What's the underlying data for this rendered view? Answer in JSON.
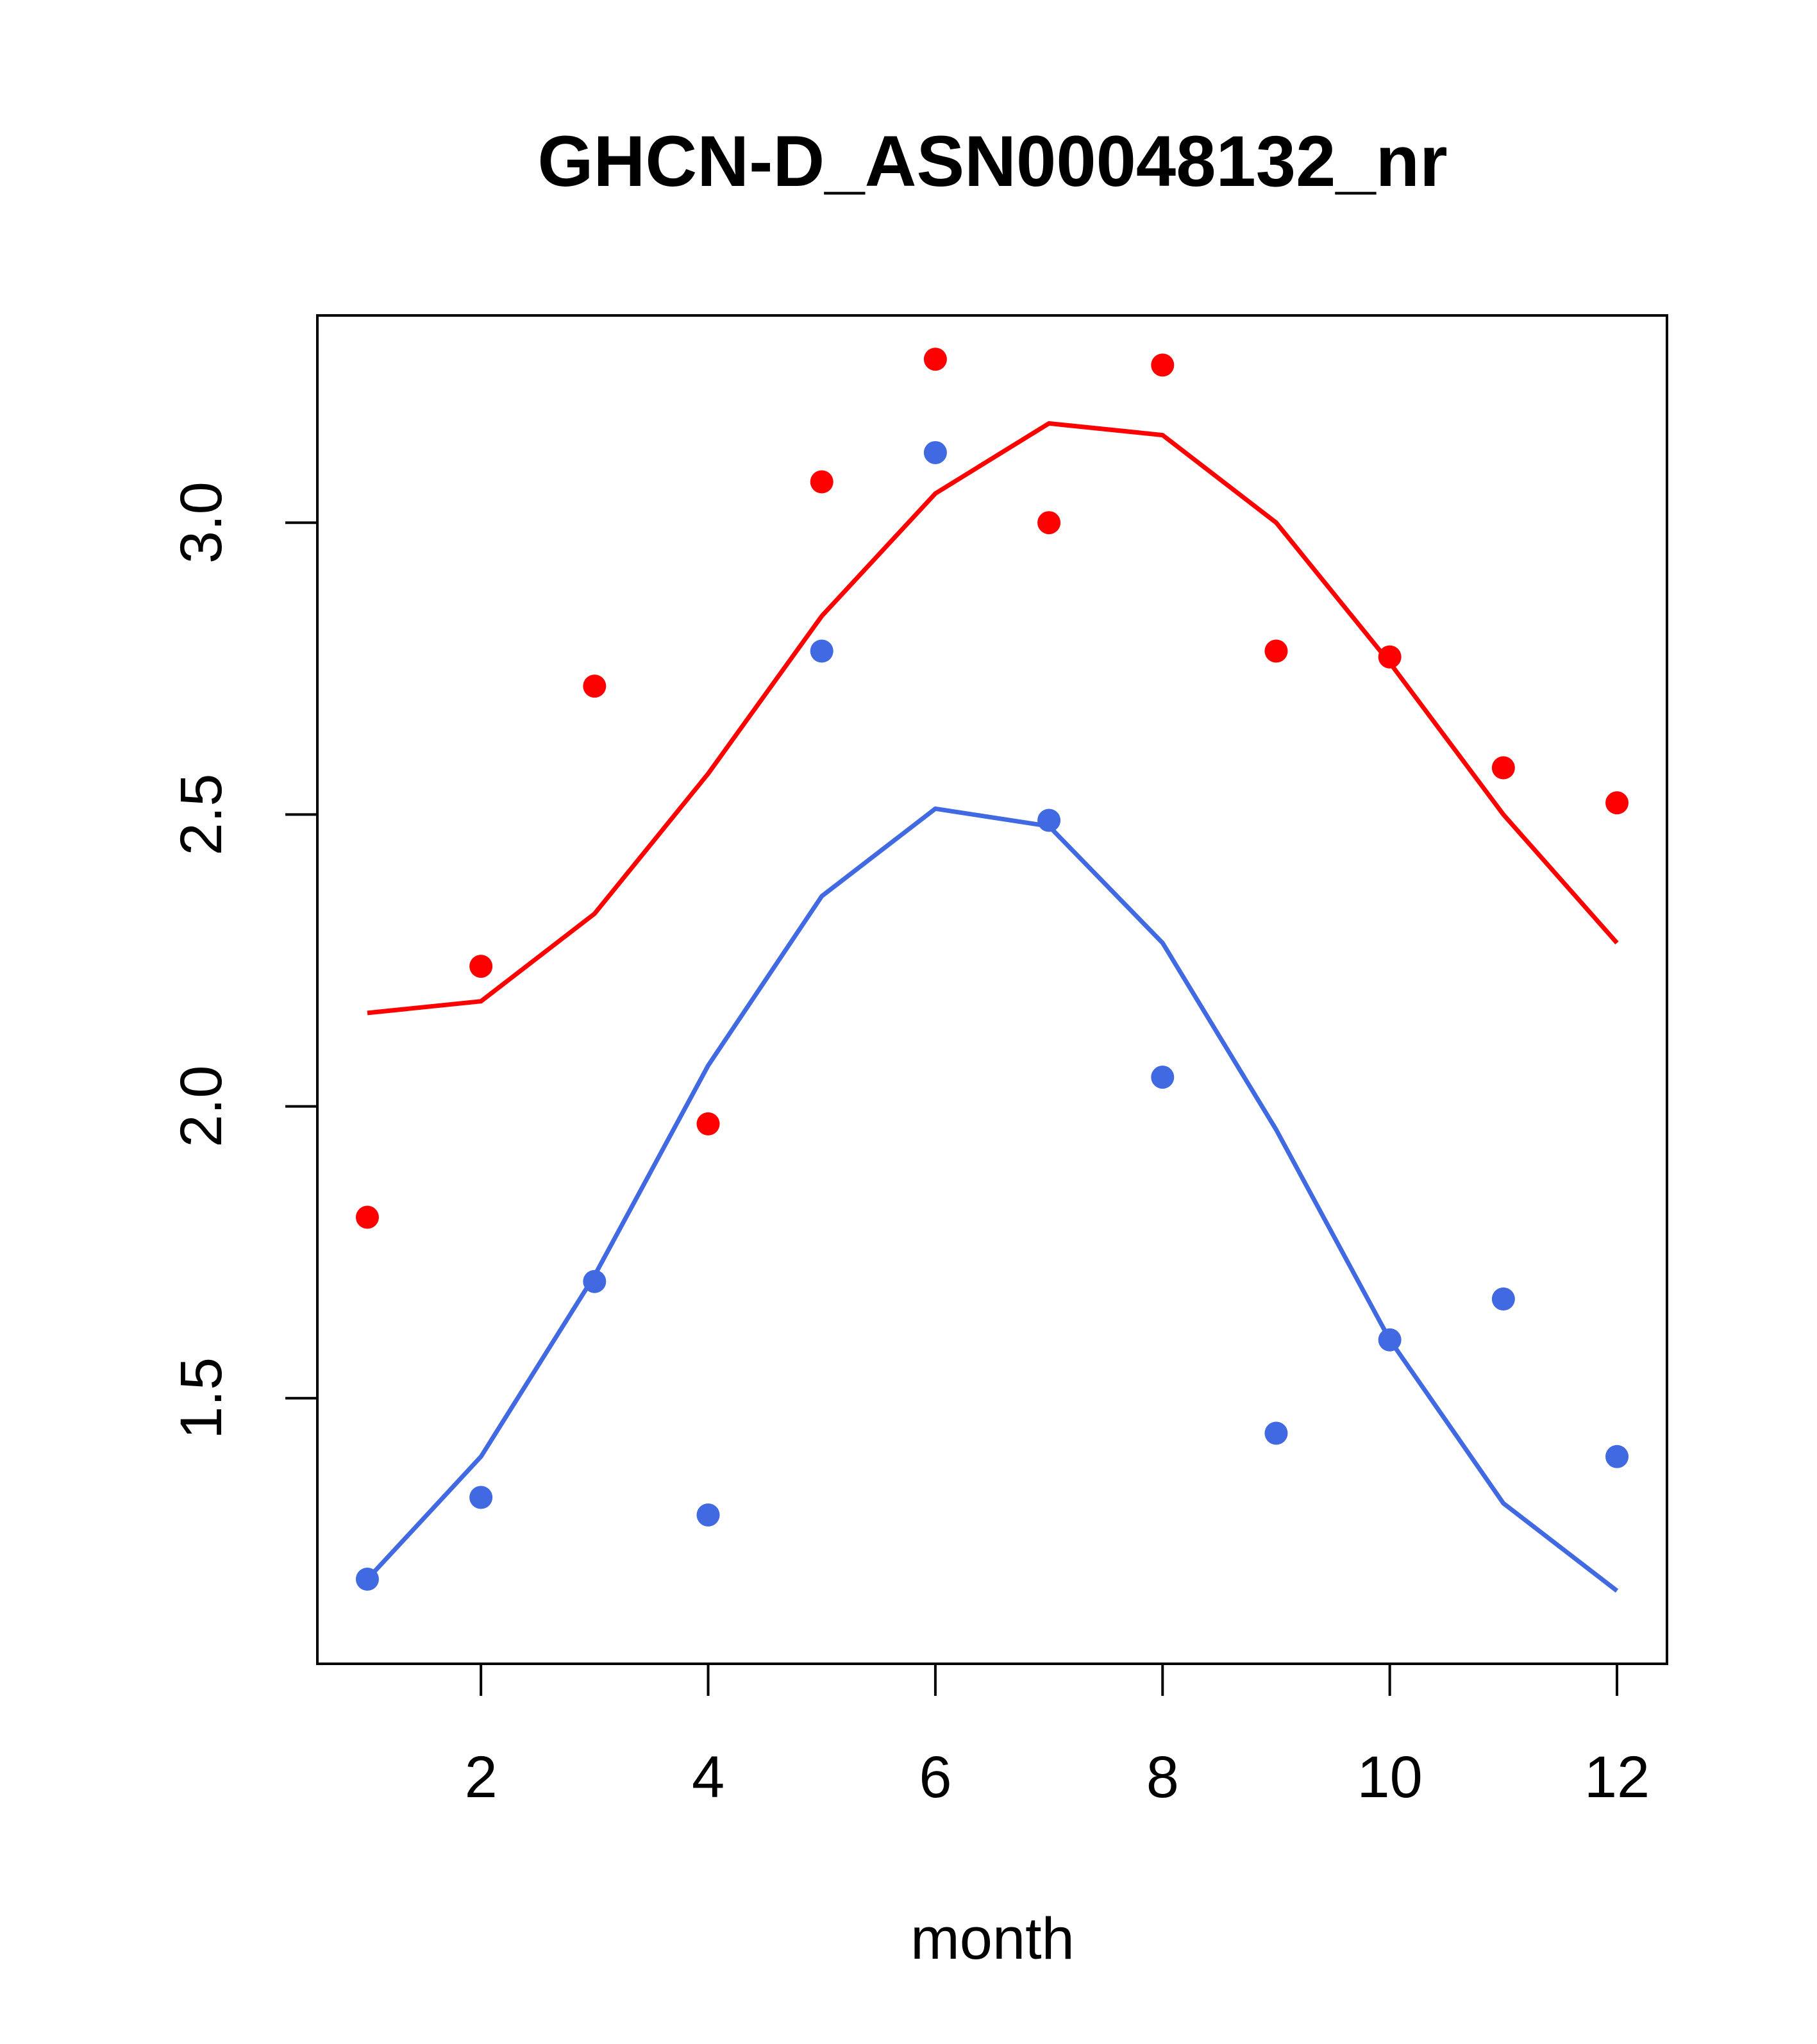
{
  "chart_data": {
    "type": "line",
    "title": "GHCN-D_ASN00048132_nr",
    "xlabel": "month",
    "ylabel": "",
    "xlim": [
      0.56,
      12.44
    ],
    "ylim": [
      1.045,
      3.355
    ],
    "x_ticks": [
      2,
      4,
      6,
      8,
      10,
      12
    ],
    "y_ticks": [
      1.5,
      2.0,
      2.5,
      3.0
    ],
    "x_tick_labels": [
      "2",
      "4",
      "6",
      "8",
      "10",
      "12"
    ],
    "y_tick_labels": [
      "1.5",
      "2.0",
      "2.5",
      "3.0"
    ],
    "grid": false,
    "legend": "none",
    "series": [
      {
        "color": "#ff0000",
        "x": [
          1,
          2,
          3,
          4,
          5,
          6,
          7,
          8,
          9,
          10,
          11,
          12
        ],
        "points": [
          1.81,
          2.24,
          2.72,
          1.97,
          3.07,
          3.28,
          3.0,
          3.27,
          2.78,
          2.77,
          2.58,
          2.52
        ],
        "line": [
          2.16,
          2.18,
          2.33,
          2.57,
          2.84,
          3.05,
          3.17,
          3.15,
          3.0,
          2.76,
          2.5,
          2.28
        ]
      },
      {
        "color": "#4169e1",
        "x": [
          1,
          2,
          3,
          4,
          5,
          6,
          7,
          8,
          9,
          10,
          11,
          12
        ],
        "points": [
          1.19,
          1.33,
          1.7,
          1.3,
          2.78,
          3.12,
          2.49,
          2.05,
          1.44,
          1.6,
          1.67,
          1.4
        ],
        "line": [
          1.19,
          1.4,
          1.71,
          2.07,
          2.36,
          2.51,
          2.48,
          2.28,
          1.96,
          1.6,
          1.32,
          1.17
        ]
      }
    ]
  }
}
